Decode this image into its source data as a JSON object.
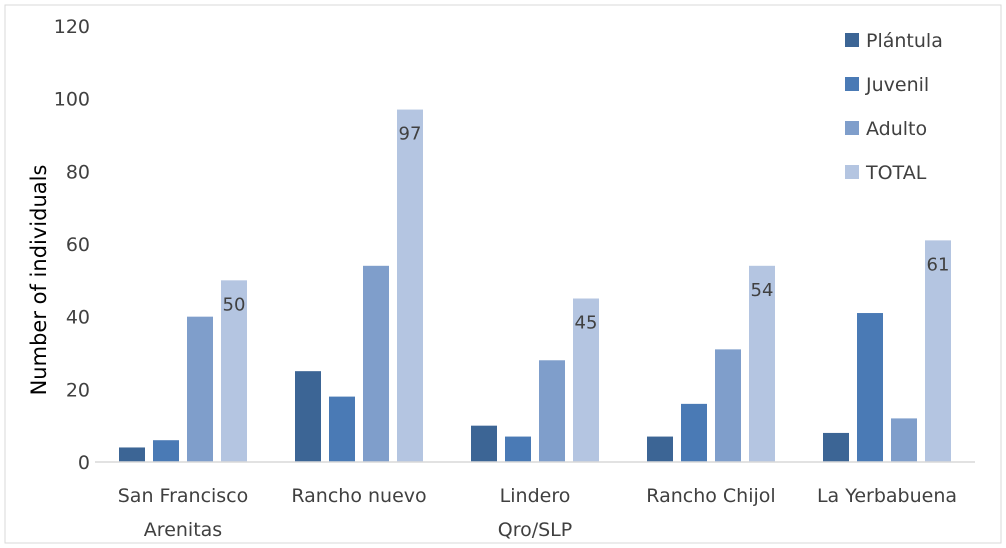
{
  "chart_data": {
    "type": "bar",
    "title": "",
    "xlabel": "",
    "ylabel": "Number of individuals",
    "ylim": [
      0,
      120
    ],
    "yticks": [
      0,
      20,
      40,
      60,
      80,
      100,
      120
    ],
    "grid": false,
    "legend_position": "top-right",
    "categories": [
      [
        "San Francisco",
        "Arenitas"
      ],
      [
        "Rancho nuevo"
      ],
      [
        "Lindero",
        "Qro/SLP"
      ],
      [
        "Rancho Chijol"
      ],
      [
        "La Yerbabuena"
      ]
    ],
    "series": [
      {
        "name": "Plántula",
        "color": "#3c6595",
        "values": [
          4,
          25,
          10,
          7,
          8
        ]
      },
      {
        "name": "Juvenil",
        "color": "#4a7ab5",
        "values": [
          6,
          18,
          7,
          16,
          41
        ]
      },
      {
        "name": "Adulto",
        "color": "#7f9ecb",
        "values": [
          40,
          54,
          28,
          31,
          12
        ]
      },
      {
        "name": "TOTAL",
        "color": "#b4c5e1",
        "values": [
          50,
          97,
          45,
          54,
          61
        ]
      }
    ],
    "data_labels": {
      "series": "TOTAL",
      "values": [
        "50",
        "97",
        "45",
        "54",
        "61"
      ]
    }
  }
}
